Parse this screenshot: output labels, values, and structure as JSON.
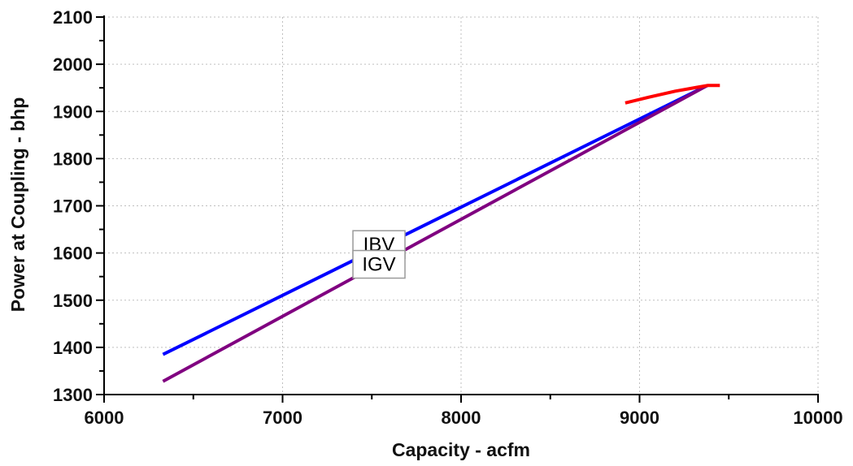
{
  "chart_data": {
    "type": "line",
    "title": "",
    "xlabel": "Capacity - acfm",
    "ylabel": "Power at Coupling - bhp",
    "xlim": [
      6000,
      10000
    ],
    "ylim": [
      1300,
      2100
    ],
    "x_ticks": [
      "6000",
      "7000",
      "8000",
      "9000",
      "10000"
    ],
    "y_ticks": [
      "1300",
      "1400",
      "1500",
      "1600",
      "1700",
      "1800",
      "1900",
      "2000",
      "2100"
    ],
    "grid": true,
    "grid_style": "dotted",
    "series": [
      {
        "color": "#0000ff",
        "points": [
          [
            6330,
            1385
          ],
          [
            9380,
            1955
          ]
        ]
      },
      {
        "color": "#800080",
        "points": [
          [
            6330,
            1328
          ],
          [
            9380,
            1955
          ]
        ]
      },
      {
        "color": "#ff0000",
        "points": [
          [
            8920,
            1918
          ],
          [
            9050,
            1930
          ],
          [
            9200,
            1943
          ],
          [
            9320,
            1951
          ],
          [
            9380,
            1955
          ],
          [
            9450,
            1955
          ]
        ]
      }
    ],
    "annotations": [
      {
        "text": "IBV",
        "x": 7540,
        "y": 1618,
        "partially_hidden": true
      },
      {
        "text": "IGV",
        "x": 7540,
        "y": 1576
      }
    ]
  }
}
